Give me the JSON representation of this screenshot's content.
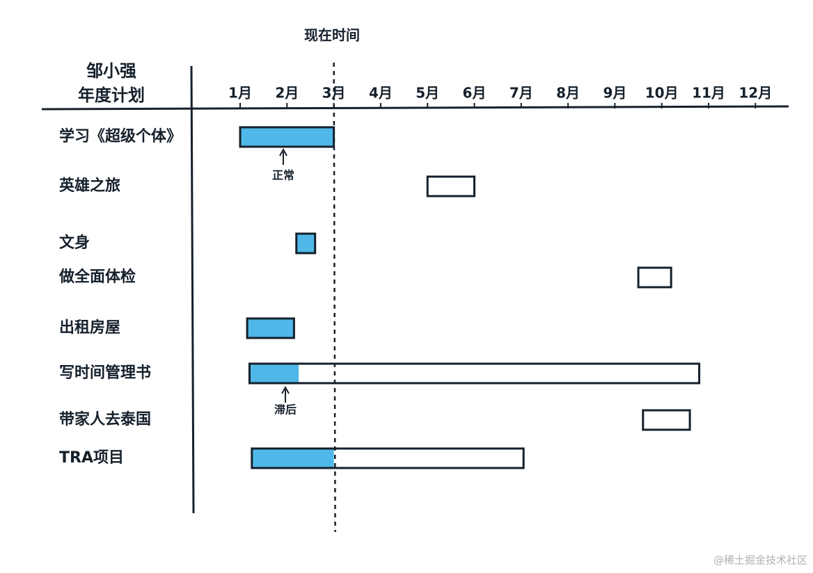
{
  "chart_data": {
    "type": "gantt",
    "title": [
      "邹小强",
      "年度计划"
    ],
    "now_label": "现在时间",
    "now": 3,
    "xlim": [
      0,
      13
    ],
    "xticks": [
      {
        "value": 1,
        "label": "1月"
      },
      {
        "value": 2,
        "label": "2月"
      },
      {
        "value": 3,
        "label": "3月"
      },
      {
        "value": 4,
        "label": "4月"
      },
      {
        "value": 5,
        "label": "5月"
      },
      {
        "value": 6,
        "label": "6月"
      },
      {
        "value": 7,
        "label": "7月"
      },
      {
        "value": 8,
        "label": "8月"
      },
      {
        "value": 9,
        "label": "9月"
      },
      {
        "value": 10,
        "label": "10月"
      },
      {
        "value": 11,
        "label": "11月"
      },
      {
        "value": 12,
        "label": "12月"
      }
    ],
    "done_color": "#4fb8e8",
    "outline_color": "#15202b",
    "tasks": [
      {
        "name": "学习《超级个体》",
        "start": 1,
        "end": 3,
        "done": 3
      },
      {
        "name": "英雄之旅",
        "start": 5,
        "end": 6,
        "done": null
      },
      {
        "name": "文身",
        "start": 2.2,
        "end": 2.6,
        "done": 2.6
      },
      {
        "name": "做全面体检",
        "start": 9.5,
        "end": 10.2,
        "done": null
      },
      {
        "name": "出租房屋",
        "start": 1.15,
        "end": 2.15,
        "done": 2.15
      },
      {
        "name": "写时间管理书",
        "start": 1.2,
        "end": 10.8,
        "done": 2.25
      },
      {
        "name": "带家人去泰国",
        "start": 9.6,
        "end": 10.6,
        "done": null
      },
      {
        "name": "TRA项目",
        "start": 1.25,
        "end": 7.05,
        "done": 3
      }
    ],
    "annotations": [
      "正常",
      "滞后"
    ],
    "watermark": "@稀土掘金技术社区"
  }
}
